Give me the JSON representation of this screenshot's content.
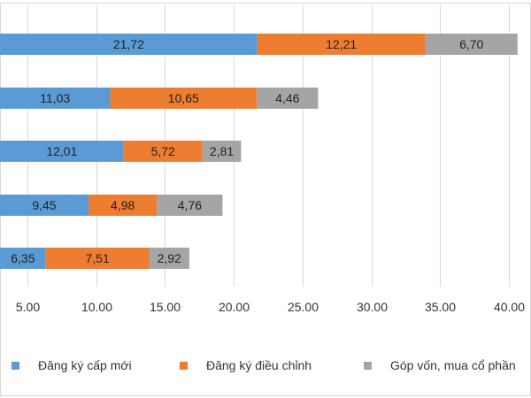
{
  "chart_data": {
    "type": "bar",
    "orientation": "horizontal",
    "stacked": true,
    "categories": [
      "",
      "",
      "",
      "",
      ""
    ],
    "series": [
      {
        "name": "Đăng ký cấp mới",
        "color": "#5B9BD5",
        "values": [
          21.72,
          11.03,
          12.01,
          9.45,
          6.35
        ],
        "labels": [
          "21,72",
          "11,03",
          "12,01",
          "9,45",
          "6,35"
        ]
      },
      {
        "name": "Đăng ký điều chỉnh",
        "color": "#ED7D31",
        "values": [
          12.21,
          10.65,
          5.72,
          4.98,
          7.51
        ],
        "labels": [
          "12,21",
          "10,65",
          "5,72",
          "4,98",
          "7,51"
        ]
      },
      {
        "name": "Góp vốn, mua cổ phần",
        "color": "#A5A5A5",
        "values": [
          6.7,
          4.46,
          2.81,
          4.76,
          2.92
        ],
        "labels": [
          "6,70",
          "4,46",
          "2,81",
          "4,76",
          "2,92"
        ]
      }
    ],
    "xlim": [
      0,
      40
    ],
    "x_ticks": [
      5,
      10,
      15,
      20,
      25,
      30,
      35,
      40
    ],
    "x_tick_labels": [
      "5.00",
      "10.00",
      "15.00",
      "20.00",
      "25.00",
      "30.00",
      "35.00",
      "40.00"
    ],
    "grid": true,
    "legend_position": "bottom",
    "title": "",
    "xlabel": "",
    "ylabel": ""
  }
}
